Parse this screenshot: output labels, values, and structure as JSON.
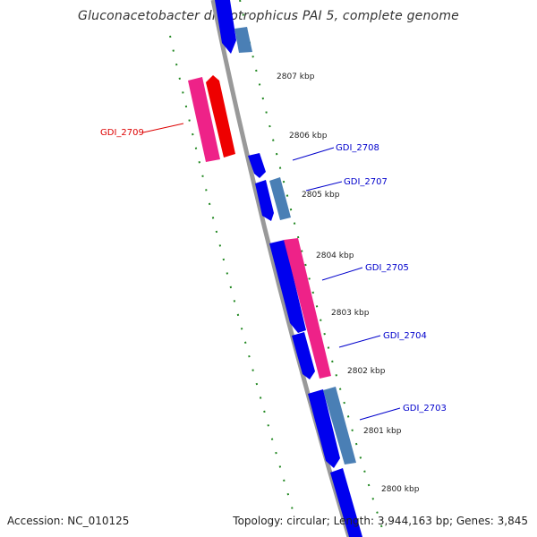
{
  "title": "Gluconacetobacter diazotrophicus PAI 5, complete genome",
  "footer": {
    "accession_label": "Accession:",
    "accession": "NC_010125",
    "topology_label": "Topology:",
    "topology": "circular",
    "length_label": "Length:",
    "length": "3,944,163 bp",
    "genes_label": "Genes:",
    "genes": "3,845"
  },
  "ticks": [
    "2807 kbp",
    "2806 kbp",
    "2805 kbp",
    "2804 kbp",
    "2803 kbp",
    "2802 kbp",
    "2801 kbp",
    "2800 kbp"
  ],
  "gene_labels": [
    {
      "id": "GDI_2709",
      "color": "#dd0000"
    },
    {
      "id": "GDI_2708",
      "color": "#0000cc"
    },
    {
      "id": "GDI_2707",
      "color": "#0000cc"
    },
    {
      "id": "GDI_2705",
      "color": "#0000cc"
    },
    {
      "id": "GDI_2704",
      "color": "#0000cc"
    },
    {
      "id": "GDI_2703",
      "color": "#0000cc"
    }
  ],
  "colors": {
    "backbone": "#888888",
    "gene_blue": "#0000ee",
    "gene_steel": "#4a7fb5",
    "gene_pink": "#ee2288",
    "gene_red": "#ee0000",
    "tick_green": "#228822"
  }
}
